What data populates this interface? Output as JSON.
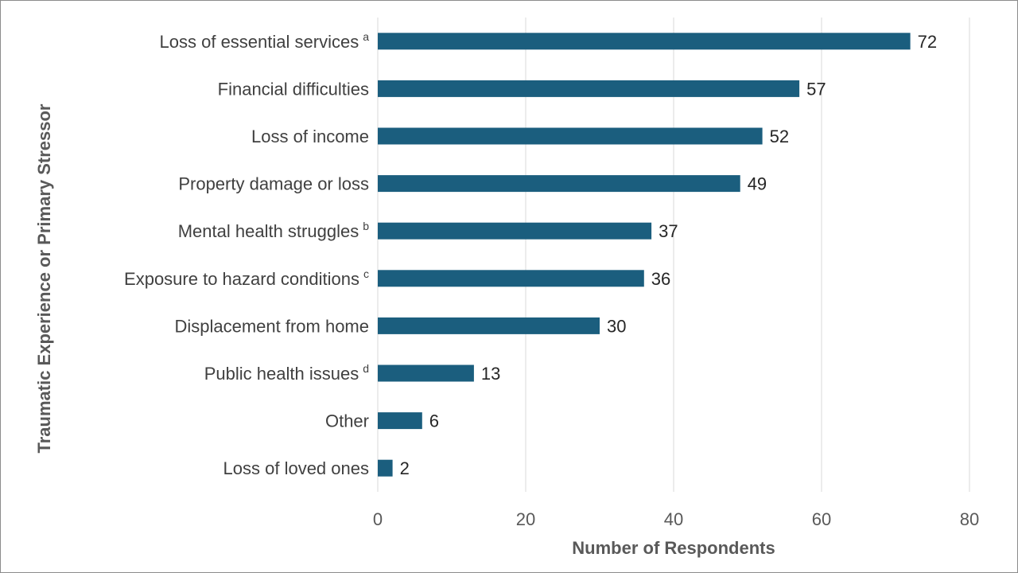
{
  "chart_data": {
    "type": "bar",
    "orientation": "horizontal",
    "categories": [
      {
        "label": "Loss of essential services",
        "note": "a"
      },
      {
        "label": "Financial difficulties",
        "note": ""
      },
      {
        "label": "Loss of income",
        "note": ""
      },
      {
        "label": "Property damage or loss",
        "note": ""
      },
      {
        "label": "Mental health struggles",
        "note": "b"
      },
      {
        "label": "Exposure to hazard conditions",
        "note": "c"
      },
      {
        "label": "Displacement from home",
        "note": ""
      },
      {
        "label": "Public health issues",
        "note": "d"
      },
      {
        "label": "Other",
        "note": ""
      },
      {
        "label": "Loss of loved ones",
        "note": ""
      }
    ],
    "values": [
      72,
      57,
      52,
      49,
      37,
      36,
      30,
      13,
      6,
      2
    ],
    "xlabel": "Number of Respondents",
    "ylabel": "Traumatic Experience or Primary Stressor",
    "xlim": [
      0,
      80
    ],
    "xticks": [
      0,
      20,
      40,
      60,
      80
    ],
    "grid": "vertical",
    "bar_color": "#1b5e7e",
    "grid_color": "#d9d9d9"
  }
}
